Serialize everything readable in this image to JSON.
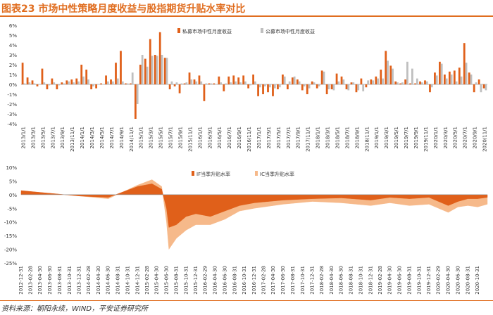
{
  "title": "图表23  市场中性策略月度收益与股指期货升贴水率对比",
  "source": "资料来源：朝阳永续，WIND，平安证券研究所",
  "colors": {
    "primary": "#e0601a",
    "secondary": "#bfbfbf",
    "light": "#f6b98a",
    "accent": "#e06d1f"
  },
  "chart_data": [
    {
      "type": "bar",
      "title": "",
      "ylim": [
        -4,
        6
      ],
      "yticks": [
        "6%",
        "5%",
        "4%",
        "3%",
        "2%",
        "1%",
        "0%",
        "-1%",
        "-2%",
        "-3%",
        "-4%"
      ],
      "tick_values": [
        6,
        5,
        4,
        3,
        2,
        1,
        0,
        -1,
        -2,
        -3,
        -4
      ],
      "categories": [
        "2013/1",
        "2013/2",
        "2013/3",
        "2013/4",
        "2013/5",
        "2013/6",
        "2013/7",
        "2013/8",
        "2013/9",
        "2013/10",
        "2013/11",
        "2013/12",
        "2014/1",
        "2014/2",
        "2014/3",
        "2014/4",
        "2014/5",
        "2014/6",
        "2014/7",
        "2014/8",
        "2014/9",
        "2014/10",
        "2014/11",
        "2014/12",
        "2015/1",
        "2015/2",
        "2015/3",
        "2015/4",
        "2015/5",
        "2015/6",
        "2015/7",
        "2015/8",
        "2015/9",
        "2015/10",
        "2015/11",
        "2015/12",
        "2016/1",
        "2016/2",
        "2016/3",
        "2016/4",
        "2016/5",
        "2016/6",
        "2016/7",
        "2016/8",
        "2016/9",
        "2016/10",
        "2016/11",
        "2016/12",
        "2017/1",
        "2017/2",
        "2017/3",
        "2017/4",
        "2017/5",
        "2017/6",
        "2017/7",
        "2017/8",
        "2017/9",
        "2017/10",
        "2017/11",
        "2017/12",
        "2018/1",
        "2018/2",
        "2018/3",
        "2018/4",
        "2018/5",
        "2018/6",
        "2018/7",
        "2018/8",
        "2018/9",
        "2018/10",
        "2018/11",
        "2018/12",
        "2019/1",
        "2019/2",
        "2019/3",
        "2019/4",
        "2019/5",
        "2019/6",
        "2019/7",
        "2019/8",
        "2019/9",
        "2019/10",
        "2019/11",
        "2019/12",
        "2020/1",
        "2020/2",
        "2020/3",
        "2020/4",
        "2020/5",
        "2020/6",
        "2020/7",
        "2020/8",
        "2020/9",
        "2020/10",
        "2020/11"
      ],
      "xtick_labels": [
        "2013/1/1",
        "2013/3/1",
        "2013/5/1",
        "2013/7/1",
        "2013/9/1",
        "2013/11/1",
        "2014/1/1",
        "2014/3/1",
        "2014/5/1",
        "2014/7/1",
        "2014/9/1",
        "2014/11/1",
        "2015/1/1",
        "2015/3/1",
        "2015/5/1",
        "2015/7/1",
        "2015/9/1",
        "2015/11/1",
        "2016/1/1",
        "2016/3/1",
        "2016/5/1",
        "2016/7/1",
        "2016/9/1",
        "2016/11/1",
        "2017/1/1",
        "2017/3/1",
        "2017/5/1",
        "2017/7/1",
        "2017/9/1",
        "2017/11/1",
        "2018/1/1",
        "2018/3/1",
        "2018/5/1",
        "2018/7/1",
        "2018/9/1",
        "2018/11/1",
        "2019/1/1",
        "2019/3/1",
        "2019/5/1",
        "2019/7/1",
        "2019/9/1",
        "2019/11/1",
        "2020/1/1",
        "2020/3/1",
        "2020/5/1",
        "2020/7/1",
        "2020/9/1",
        "2020/11/1"
      ],
      "series": [
        {
          "name": "私募市场中性月度收益",
          "color": "#e0601a",
          "values": [
            2.2,
            0.7,
            0.4,
            -0.2,
            1.6,
            -0.5,
            0.6,
            -0.5,
            0.2,
            0.4,
            0.5,
            0.6,
            2.0,
            1.5,
            -0.5,
            -0.4,
            0.1,
            0.9,
            0.5,
            2.2,
            3.4,
            0.1,
            0.1,
            -3.5,
            2.0,
            2.6,
            4.6,
            3.0,
            5.3,
            2.7,
            -0.5,
            -0.2,
            -0.9,
            0.1,
            1.2,
            0.5,
            0.9,
            -1.7,
            0.1,
            0.1,
            0.8,
            -0.7,
            0.8,
            0.9,
            0.7,
            0.9,
            -0.4,
            1.0,
            -1.2,
            -1.0,
            -0.8,
            -1.2,
            -0.5,
            1.0,
            -0.5,
            0.7,
            0.5,
            -0.6,
            -1.0,
            0.3,
            -0.4,
            1.4,
            -1.0,
            -0.5,
            1.1,
            0.8,
            -0.5,
            0.2,
            -0.8,
            0.6,
            -0.3,
            0.5,
            0.8,
            1.5,
            3.4,
            1.9,
            0.3,
            0.1,
            0.5,
            0.1,
            0.1,
            0.3,
            0.4,
            -0.8,
            1.2,
            2.3,
            1.0,
            1.3,
            1.4,
            1.7,
            4.2,
            1.2,
            -0.8,
            0.5,
            -0.4
          ]
        },
        {
          "name": "公募市场中性月度收益",
          "color": "#bfbfbf",
          "values": [
            0.1,
            0.2,
            0.1,
            0.0,
            0.2,
            -0.1,
            0.2,
            -0.1,
            0.1,
            0.3,
            0.2,
            0.3,
            0.8,
            0.5,
            -0.2,
            0.0,
            0.0,
            0.3,
            0.3,
            0.6,
            0.3,
            0.1,
            1.2,
            -2.0,
            3.0,
            1.8,
            2.9,
            2.9,
            3.0,
            2.7,
            0.3,
            0.2,
            0.1,
            0.2,
            0.5,
            0.3,
            0.3,
            0.1,
            0.1,
            0.0,
            0.2,
            0.1,
            0.2,
            0.3,
            0.2,
            0.3,
            -0.1,
            0.3,
            -0.3,
            -0.2,
            -0.3,
            -0.4,
            -0.3,
            0.8,
            0.3,
            0.8,
            0.3,
            -0.2,
            -0.4,
            0.2,
            -0.2,
            1.3,
            -0.5,
            -0.6,
            0.3,
            0.5,
            -0.6,
            0.2,
            -0.6,
            -0.7,
            0.4,
            0.4,
            0.6,
            0.6,
            2.4,
            1.6,
            0.2,
            0.2,
            2.3,
            1.6,
            0.6,
            0.2,
            0.3,
            -0.3,
            0.9,
            2.1,
            0.6,
            1.0,
            0.3,
            0.8,
            2.2,
            1.0,
            0.2,
            -0.8,
            -0.6
          ]
        }
      ],
      "legend": "top-center"
    },
    {
      "type": "area",
      "title": "",
      "ylim": [
        -25,
        10
      ],
      "yticks": [
        "10%",
        "5%",
        "0%",
        "-5%",
        "-10%",
        "-15%",
        "-20%",
        "-25%"
      ],
      "tick_values": [
        10,
        5,
        0,
        -5,
        -10,
        -15,
        -20,
        -25
      ],
      "x_dates": [
        "2012-12-31",
        "2013-06-30",
        "2013-12-31",
        "2014-06-30",
        "2014-12-31",
        "2015-03-31",
        "2015-05-31",
        "2015-06-30",
        "2015-07-15",
        "2015-08-31",
        "2015-10-31",
        "2015-12-31",
        "2016-03-31",
        "2016-06-30",
        "2016-09-30",
        "2016-12-31",
        "2017-06-30",
        "2017-12-31",
        "2018-06-30",
        "2018-12-31",
        "2019-04-30",
        "2019-08-31",
        "2019-12-31",
        "2020-02-29",
        "2020-04-30",
        "2020-06-30",
        "2020-08-31",
        "2020-10-31",
        "2020-12-31"
      ],
      "xtick_labels": [
        "2012-12-31",
        "2013-02-28",
        "2013-04-30",
        "2013-06-30",
        "2013-08-31",
        "2013-10-31",
        "2013-12-31",
        "2014-02-28",
        "2014-04-30",
        "2014-06-30",
        "2014-08-31",
        "2014-10-31",
        "2014-12-31",
        "2015-02-28",
        "2015-04-30",
        "2015-06-30",
        "2015-08-31",
        "2015-10-31",
        "2015-12-31",
        "2016-02-29",
        "2016-04-30",
        "2016-06-30",
        "2016-08-31",
        "2016-10-31",
        "2016-12-31",
        "2017-02-28",
        "2017-04-30",
        "2017-06-30",
        "2017-08-31",
        "2017-10-31",
        "2017-12-31",
        "2018-02-28",
        "2018-04-30",
        "2018-06-30",
        "2018-08-31",
        "2018-10-31",
        "2018-12-31",
        "2019-02-28",
        "2019-04-30",
        "2019-06-30",
        "2019-08-31",
        "2019-10-31",
        "2019-12-31",
        "2020-02-29",
        "2020-04-30",
        "2020-06-30",
        "2020-08-31",
        "2020-10-31"
      ],
      "series": [
        {
          "name": "IF当季升贴水率",
          "color": "#e0601a",
          "values": [
            1.5,
            0.5,
            -0.5,
            -1.0,
            3.0,
            4.0,
            2.0,
            -5.0,
            -12.0,
            -11.0,
            -8.0,
            -7.0,
            -8.0,
            -6.0,
            -4.0,
            -3.0,
            -2.0,
            -1.5,
            -1.2,
            -2.0,
            -1.0,
            -1.5,
            -1.0,
            -2.5,
            -4.0,
            -2.5,
            -1.5,
            -1.5,
            -1.0
          ]
        },
        {
          "name": "IC当季升贴水率",
          "color": "#f6b98a",
          "values": [
            1.0,
            0.5,
            -0.5,
            -1.5,
            3.5,
            5.5,
            3.0,
            -10.0,
            -20.0,
            -16.0,
            -13.0,
            -11.0,
            -11.0,
            -9.0,
            -6.0,
            -5.0,
            -3.5,
            -2.5,
            -3.0,
            -4.0,
            -3.0,
            -4.0,
            -3.5,
            -5.0,
            -6.5,
            -4.5,
            -4.0,
            -4.5,
            -3.5
          ]
        }
      ],
      "legend": "top-center"
    }
  ]
}
